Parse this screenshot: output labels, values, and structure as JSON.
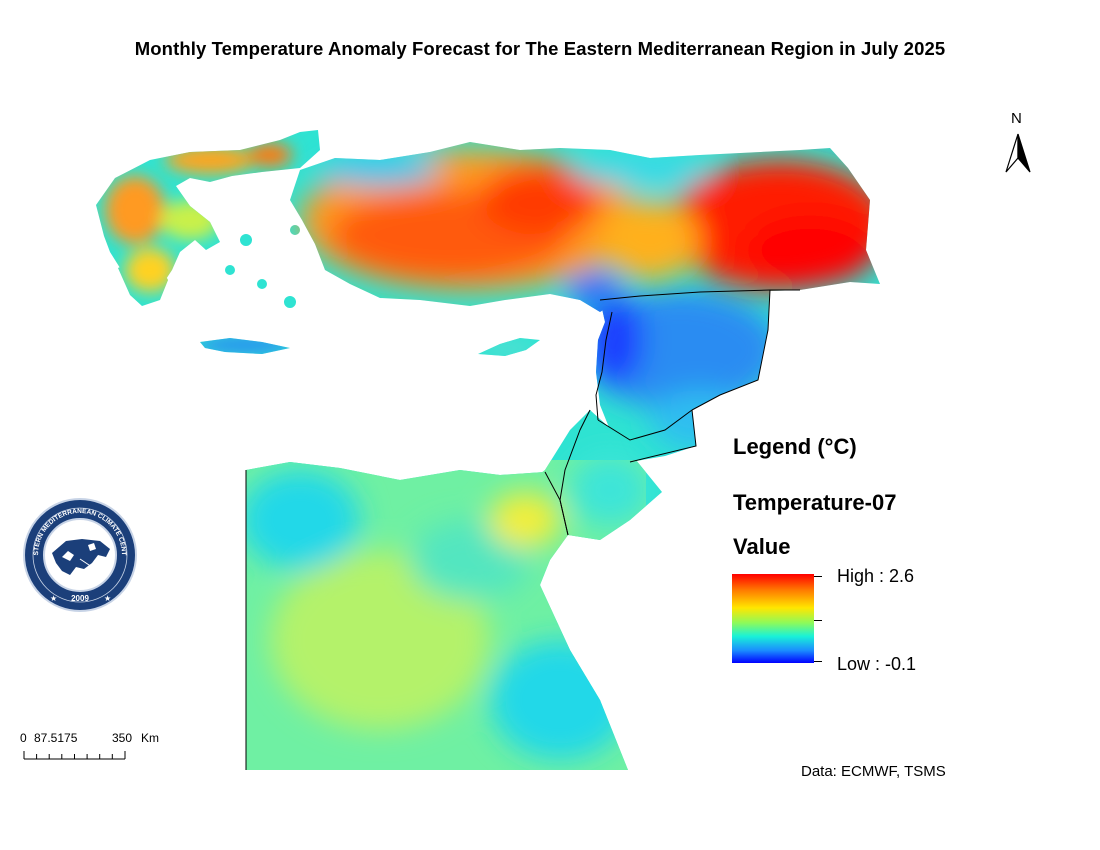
{
  "title": "Monthly Temperature Anomaly Forecast for The Eastern Mediterranean Region in July 2025",
  "north_label": "N",
  "legend": {
    "heading": "Legend (°C)",
    "layer_name": "Temperature-07",
    "field_name": "Value",
    "high_label": "High : 2.6",
    "low_label": "Low : -0.1",
    "high_value": 2.6,
    "low_value": -0.1,
    "ramp_colors": [
      "#ff0000",
      "#ff7a00",
      "#ffe600",
      "#8dfa5a",
      "#19f2d8",
      "#1a8cff",
      "#0000ff"
    ]
  },
  "scale_bar": {
    "labels": [
      "0",
      "87.5175",
      "350",
      "Km"
    ]
  },
  "source_text": "Data: ECMWF, TSMS",
  "logo": {
    "name": "eastern-mediterranean-climate-centre-logo",
    "text": "EASTERN MEDITERRANEAN CLIMATE CENTRE",
    "year": "2009"
  }
}
